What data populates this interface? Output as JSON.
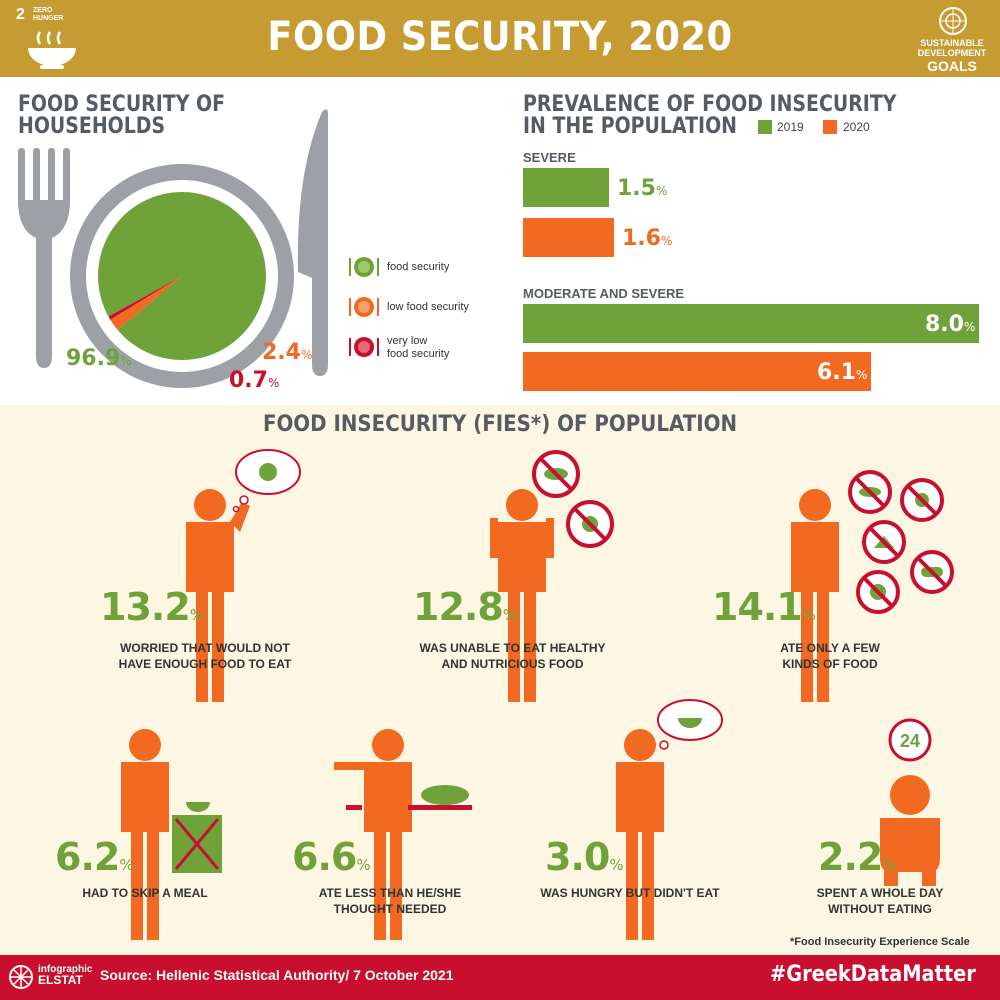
{
  "header": {
    "title": "FOOD SECURITY, 2020",
    "sdg_number": "2",
    "sdg_label": "ZERO HUNGER",
    "sdg_goals_line1": "SUSTAINABLE",
    "sdg_goals_line2": "DEVELOPMENT",
    "sdg_goals_line3": "GOALS"
  },
  "households": {
    "title_line1": "FOOD SECURITY OF",
    "title_line2": "HOUSEHOLDS"
  },
  "prevalence": {
    "title_line1": "PREVALENCE OF FOOD INSECURITY",
    "title_line2": "IN THE POPULATION"
  },
  "chart_data": [
    {
      "type": "pie",
      "categories": [
        "food security",
        "low food security",
        "very low food security"
      ],
      "values": [
        96.9,
        2.4,
        0.7
      ],
      "labels": [
        "96.9",
        "2.4",
        "0.7"
      ],
      "unit": "%",
      "colors": [
        "#6fa33a",
        "#f26a21",
        "#c8102e"
      ],
      "legend": [
        "food security",
        "low food security",
        "very low",
        "food security"
      ]
    },
    {
      "type": "bar",
      "orientation": "horizontal",
      "groups": [
        "SEVERE",
        "MODERATE AND SEVERE"
      ],
      "series": [
        {
          "name": "2019",
          "values": [
            1.5,
            8.0
          ],
          "labels": [
            "1.5",
            "8.0"
          ],
          "color": "#6fa33a"
        },
        {
          "name": "2020",
          "values": [
            1.6,
            6.1
          ],
          "labels": [
            "1.6",
            "6.1"
          ],
          "color": "#f26a21"
        }
      ],
      "unit": "%",
      "xlim": [
        0,
        8.4
      ]
    }
  ],
  "fies": {
    "title": "FOOD INSECURITY (FIES*) OF POPULATION",
    "items": [
      {
        "value": "13.2",
        "label_line1": "WORRIED THAT WOULD NOT",
        "label_line2": "HAVE ENOUGH FOOD TO EAT"
      },
      {
        "value": "12.8",
        "label_line1": "WAS UNABLE TO EAT HEALTHY",
        "label_line2": "AND NUTRICIOUS FOOD"
      },
      {
        "value": "14.1",
        "label_line1": "ATE ONLY A FEW",
        "label_line2": "KINDS OF FOOD"
      },
      {
        "value": "6.2",
        "label_line1": "HAD TO SKIP A MEAL",
        "label_line2": ""
      },
      {
        "value": "6.6",
        "label_line1": "ATE LESS THAN HE/SHE",
        "label_line2": "THOUGHT NEEDED"
      },
      {
        "value": "3.0",
        "label_line1": "WAS HUNGRY BUT DIDN'T EAT",
        "label_line2": ""
      },
      {
        "value": "2.2",
        "label_line1": "SPENT A WHOLE DAY",
        "label_line2": "WITHOUT EATING"
      }
    ],
    "pct": "%",
    "clock_text": "24",
    "footnote": "*Food Insecurity Experience Scale"
  },
  "footer": {
    "logo_line1": "infographic",
    "logo_line2": "ELSTAT",
    "source": "Source: Hellenic Statistical Authority/ 7 October 2021",
    "hashtag": "#GreekDataMatter"
  },
  "colors": {
    "green": "#6fa33a",
    "orange": "#f26a21",
    "red": "#c8102e",
    "gold": "#c69b32",
    "grey": "#9da1a5",
    "cream": "#fcf6e2"
  },
  "icons": [
    "soup-bowl-icon",
    "un-emblem-icon",
    "fork-icon",
    "knife-icon",
    "plate-icon",
    "person-icon",
    "no-fish-icon",
    "no-apple-icon",
    "no-cheese-icon",
    "no-chicken-icon",
    "no-bread-icon",
    "thought-bubble-icon",
    "clock-24-icon"
  ]
}
